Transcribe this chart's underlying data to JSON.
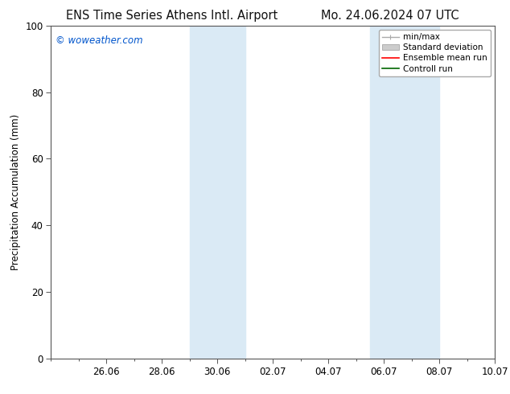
{
  "title_left": "ENS Time Series Athens Intl. Airport",
  "title_right": "Mo. 24.06.2024 07 UTC",
  "ylabel": "Precipitation Accumulation (mm)",
  "watermark": "© woweather.com",
  "watermark_color": "#0055cc",
  "ylim": [
    0,
    100
  ],
  "yticks": [
    0,
    20,
    40,
    60,
    80,
    100
  ],
  "x_tick_labels": [
    "26.06",
    "28.06",
    "30.06",
    "02.07",
    "04.07",
    "06.07",
    "08.07",
    "10.07"
  ],
  "x_tick_positions": [
    2,
    4,
    6,
    8,
    10,
    12,
    14,
    16
  ],
  "xlim": [
    0,
    16
  ],
  "shaded_regions": [
    {
      "x_start": 5.0,
      "x_end": 7.0,
      "color": "#daeaf5",
      "alpha": 1.0
    },
    {
      "x_start": 11.5,
      "x_end": 14.0,
      "color": "#daeaf5",
      "alpha": 1.0
    }
  ],
  "legend_items": [
    {
      "label": "min/max",
      "color": "#aaaaaa",
      "linewidth": 1.0,
      "type": "line_with_cap"
    },
    {
      "label": "Standard deviation",
      "color": "#cccccc",
      "linewidth": 5,
      "type": "band"
    },
    {
      "label": "Ensemble mean run",
      "color": "#ff0000",
      "linewidth": 1.2,
      "type": "line"
    },
    {
      "label": "Controll run",
      "color": "#006600",
      "linewidth": 1.2,
      "type": "line"
    }
  ],
  "bg_color": "#ffffff",
  "plot_bg_color": "#ffffff",
  "spine_color": "#555555",
  "tick_color": "#555555",
  "title_fontsize": 10.5,
  "label_fontsize": 8.5,
  "tick_fontsize": 8.5,
  "legend_fontsize": 7.5
}
